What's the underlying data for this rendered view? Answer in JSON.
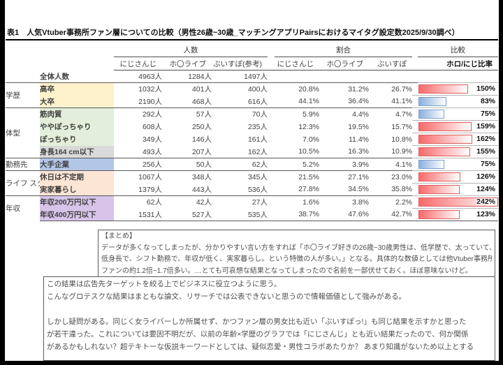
{
  "title": "表1　人気Vtuber事務所ファン層についての比較（男性26歳~30歳_マッチングアプリPairsにおけるマイタグ設定数2025/9/30調べ）",
  "table": {
    "group_headers": [
      "人数",
      "割合",
      "比較"
    ],
    "col_headers": [
      "にじさんじ",
      "ホ〇ライブ",
      "ぶいすぽ(参考)",
      "にじさんじ",
      "ホ〇ライブ",
      "ぶいすぽ",
      "ホロ/にじ比率"
    ],
    "bar_max": 242,
    "rows": [
      {
        "cat": "",
        "bg": "",
        "label": "全体人数",
        "counts": [
          "4963人",
          "1284人",
          "1497人"
        ],
        "ratios": [
          "",
          "",
          ""
        ],
        "pct": "",
        "bar": 0,
        "bar_color": ""
      },
      {
        "cat": "学歴",
        "bg": "yellow",
        "label": "高卒",
        "counts": [
          "1032人",
          "401人",
          "400人"
        ],
        "ratios": [
          "20.8%",
          "31.2%",
          "26.7%"
        ],
        "pct": "150%",
        "bar": 150,
        "bar_color": "red"
      },
      {
        "bg": "yellow",
        "label": "大卒",
        "counts": [
          "2190人",
          "468人",
          "616人"
        ],
        "ratios": [
          "44.1%",
          "36.4%",
          "41.1%"
        ],
        "pct": "83%",
        "bar": 83,
        "bar_color": "blue"
      },
      {
        "cat": "体型",
        "bg": "green",
        "label": "筋肉質",
        "counts": [
          "292人",
          "57人",
          "70人"
        ],
        "ratios": [
          "5.9%",
          "4.4%",
          "4.7%"
        ],
        "pct": "75%",
        "bar": 75,
        "bar_color": "blue"
      },
      {
        "bg": "green",
        "label": "ややぽっちゃり",
        "counts": [
          "608人",
          "250人",
          "235人"
        ],
        "ratios": [
          "12.3%",
          "19.5%",
          "15.7%"
        ],
        "pct": "159%",
        "bar": 159,
        "bar_color": "red"
      },
      {
        "bg": "green",
        "label": "ぽっちゃり",
        "counts": [
          "349人",
          "146人",
          "161人"
        ],
        "ratios": [
          "7.0%",
          "11.4%",
          "10.8%"
        ],
        "pct": "162%",
        "bar": 162,
        "bar_color": "red"
      },
      {
        "bg": "gray",
        "label": "身長164 cm以下",
        "counts": [
          "493人",
          "207人",
          "162人"
        ],
        "ratios": [
          "10.5%",
          "16.3%",
          "10.9%"
        ],
        "pct": "155%",
        "bar": 155,
        "bar_color": "red"
      },
      {
        "cat": "勤務先",
        "bg": "blue",
        "label": "大手企業",
        "counts": [
          "256人",
          "50人",
          "62人"
        ],
        "ratios": [
          "5.2%",
          "3.9%",
          "4.1%"
        ],
        "pct": "75%",
        "bar": 75,
        "bar_color": "blue"
      },
      {
        "cat": "ライフ\nスタイル",
        "bg": "peach",
        "label": "休日は不定期",
        "counts": [
          "1067人",
          "348人",
          "345人"
        ],
        "ratios": [
          "21.5%",
          "27.1%",
          "23.0%"
        ],
        "pct": "126%",
        "bar": 126,
        "bar_color": "red"
      },
      {
        "bg": "peach",
        "label": "実家暮らし",
        "counts": [
          "1379人",
          "443人",
          "536人"
        ],
        "ratios": [
          "27.8%",
          "34.5%",
          "35.8%"
        ],
        "pct": "124%",
        "bar": 124,
        "bar_color": "red"
      },
      {
        "cat": "年収",
        "bg": "purple",
        "label": "年収200万円以下",
        "counts": [
          "62人",
          "42人",
          "27人"
        ],
        "ratios": [
          "1.6%",
          "3.8%",
          "2.2%"
        ],
        "pct": "242%",
        "bar": 242,
        "bar_color": "red"
      },
      {
        "bg": "purple",
        "label": "年収400万円以下",
        "counts": [
          "1531人",
          "527人",
          "535人"
        ],
        "ratios": [
          "38.7%",
          "47.6%",
          "42.7%"
        ],
        "pct": "123%",
        "bar": 123,
        "bar_color": "red"
      }
    ]
  },
  "summary_box": {
    "lines": [
      "【まとめ】",
      "データが多くなってしまったが、分かりやすい言い方をすれば「ホ〇ライブ好きの26歳~30歳男性は、低学歴で、太っていて、",
      "低身長で、シフト勤務で、年収が低く、実家暮らし。という特徴の人が多い。」となる。具体的な数値としては他Vtuber事務所",
      "ファンの約1.2倍~1.7倍多い。…とても可哀想な結果となってしまったので名前を一部伏せておく。ほぼ意味ないけど。"
    ]
  },
  "comment_box": {
    "lines": [
      "この結果は広告先ターゲットを絞る上でビジネスに役立つように思う。",
      "こんなグロテスクな結果はまともな論文、リサーチでは公表できないと思うので情報価値として強みがある。",
      "",
      "しかし疑問がある。同じく女ライバーしか所属せず、かつファン層の男女比も近い「ぶいすぽっ!」も同じ結果を示すかと思った",
      "が若干違った。これについては要因不明だが、以前の年齢×学歴のグラフでは「にじさんじ」とも近い結果だったので、何か関係",
      "があるかもしれない？超テキトーな仮説キーワードとしては、疑似恋愛・男性コラボあたりか？ あまり知識がないため以上とする"
    ]
  },
  "colors": {
    "row_yellow": "#fdf2cc",
    "row_green": "#e3efda",
    "row_gray": "#d9d9d9",
    "row_blue": "#b3c6e7",
    "row_peach": "#fce5d5",
    "row_purple": "#d7c4e8",
    "bar_red": "#f8696b",
    "bar_red_border": "#e05c5c",
    "bar_blue": "#8ab0de",
    "bar_blue_border": "#7b9fd0",
    "separator": "#595959"
  }
}
